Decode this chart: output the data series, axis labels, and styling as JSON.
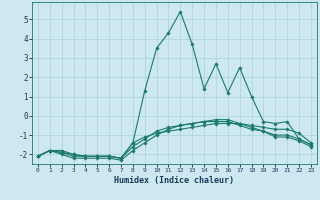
{
  "xlabel": "Humidex (Indice chaleur)",
  "ylabel": "",
  "background_color": "#cde8f0",
  "grid_color": "#b0d4de",
  "line_color": "#1a7a6e",
  "xlim": [
    -0.5,
    23.5
  ],
  "ylim": [
    -2.5,
    5.9
  ],
  "yticks": [
    -2,
    -1,
    0,
    1,
    2,
    3,
    4,
    5
  ],
  "xticks": [
    0,
    1,
    2,
    3,
    4,
    5,
    6,
    7,
    8,
    9,
    10,
    11,
    12,
    13,
    14,
    15,
    16,
    17,
    18,
    19,
    20,
    21,
    22,
    23
  ],
  "lines": [
    {
      "x": [
        0,
        1,
        2,
        3,
        4,
        5,
        6,
        7,
        8,
        9,
        10,
        11,
        12,
        13,
        14,
        15,
        16,
        17,
        18,
        19,
        20,
        21,
        22,
        23
      ],
      "y": [
        -2.1,
        -1.8,
        -1.8,
        -2.0,
        -2.1,
        -2.1,
        -2.1,
        -2.2,
        -1.4,
        -1.1,
        -0.9,
        -0.8,
        -0.7,
        -0.6,
        -0.5,
        -0.4,
        -0.4,
        -0.4,
        -0.5,
        -0.6,
        -0.7,
        -0.7,
        -0.9,
        -1.4
      ]
    },
    {
      "x": [
        0,
        1,
        2,
        3,
        4,
        5,
        6,
        7,
        8,
        9,
        10,
        11,
        12,
        13,
        14,
        15,
        16,
        17,
        18,
        19,
        20,
        21,
        22,
        23
      ],
      "y": [
        -2.1,
        -1.8,
        -1.9,
        -2.1,
        -2.1,
        -2.1,
        -2.1,
        -2.2,
        -1.6,
        -1.2,
        -0.8,
        -0.6,
        -0.5,
        -0.4,
        -0.3,
        -0.3,
        -0.3,
        -0.5,
        -0.7,
        -0.8,
        -1.0,
        -1.0,
        -1.2,
        -1.5
      ]
    },
    {
      "x": [
        0,
        1,
        2,
        3,
        4,
        5,
        6,
        7,
        8,
        9,
        10,
        11,
        12,
        13,
        14,
        15,
        16,
        17,
        18,
        19,
        20,
        21,
        22,
        23
      ],
      "y": [
        -2.1,
        -1.8,
        -2.0,
        -2.2,
        -2.2,
        -2.2,
        -2.2,
        -2.3,
        -1.8,
        -1.4,
        -1.0,
        -0.7,
        -0.5,
        -0.4,
        -0.3,
        -0.2,
        -0.2,
        -0.4,
        -0.6,
        -0.8,
        -1.1,
        -1.1,
        -1.3,
        -1.6
      ]
    },
    {
      "x": [
        0,
        1,
        2,
        3,
        4,
        5,
        6,
        7,
        8,
        9,
        10,
        11,
        12,
        13,
        14,
        15,
        16,
        17,
        18,
        19,
        20,
        21,
        22,
        23
      ],
      "y": [
        -2.1,
        -1.8,
        -1.9,
        -2.0,
        -2.1,
        -2.1,
        -2.1,
        -2.2,
        -1.4,
        1.3,
        3.5,
        4.3,
        5.4,
        3.7,
        1.4,
        2.7,
        1.2,
        2.5,
        1.0,
        -0.3,
        -0.4,
        -0.3,
        -1.2,
        -1.5
      ]
    }
  ]
}
